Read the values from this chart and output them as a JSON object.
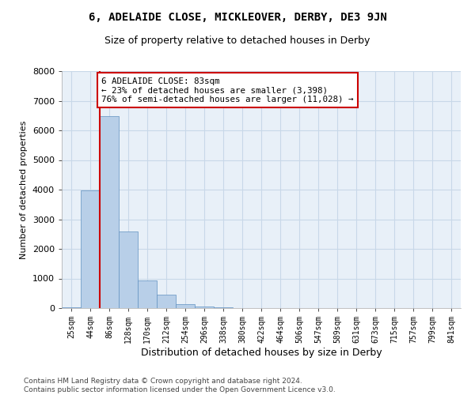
{
  "title": "6, ADELAIDE CLOSE, MICKLEOVER, DERBY, DE3 9JN",
  "subtitle": "Size of property relative to detached houses in Derby",
  "xlabel": "Distribution of detached houses by size in Derby",
  "ylabel": "Number of detached properties",
  "categories": [
    "25sqm",
    "44sqm",
    "86sqm",
    "128sqm",
    "170sqm",
    "212sqm",
    "254sqm",
    "296sqm",
    "338sqm",
    "380sqm",
    "422sqm",
    "464sqm",
    "506sqm",
    "547sqm",
    "589sqm",
    "631sqm",
    "673sqm",
    "715sqm",
    "757sqm",
    "799sqm",
    "841sqm"
  ],
  "bar_heights": [
    20,
    3980,
    6480,
    2580,
    940,
    460,
    140,
    55,
    20,
    5,
    0,
    0,
    0,
    0,
    0,
    0,
    0,
    0,
    0,
    0,
    0
  ],
  "bar_color": "#b8cfe8",
  "bar_edge_color": "#6090c0",
  "annotation_text": "6 ADELAIDE CLOSE: 83sqm\n← 23% of detached houses are smaller (3,398)\n76% of semi-detached houses are larger (11,028) →",
  "annotation_box_color": "#ffffff",
  "annotation_box_edge_color": "#cc0000",
  "red_line_color": "#cc0000",
  "ylim": [
    0,
    8000
  ],
  "yticks": [
    0,
    1000,
    2000,
    3000,
    4000,
    5000,
    6000,
    7000,
    8000
  ],
  "grid_color": "#c8d8e8",
  "bg_color": "#e8f0f8",
  "footnote": "Contains HM Land Registry data © Crown copyright and database right 2024.\nContains public sector information licensed under the Open Government Licence v3.0."
}
